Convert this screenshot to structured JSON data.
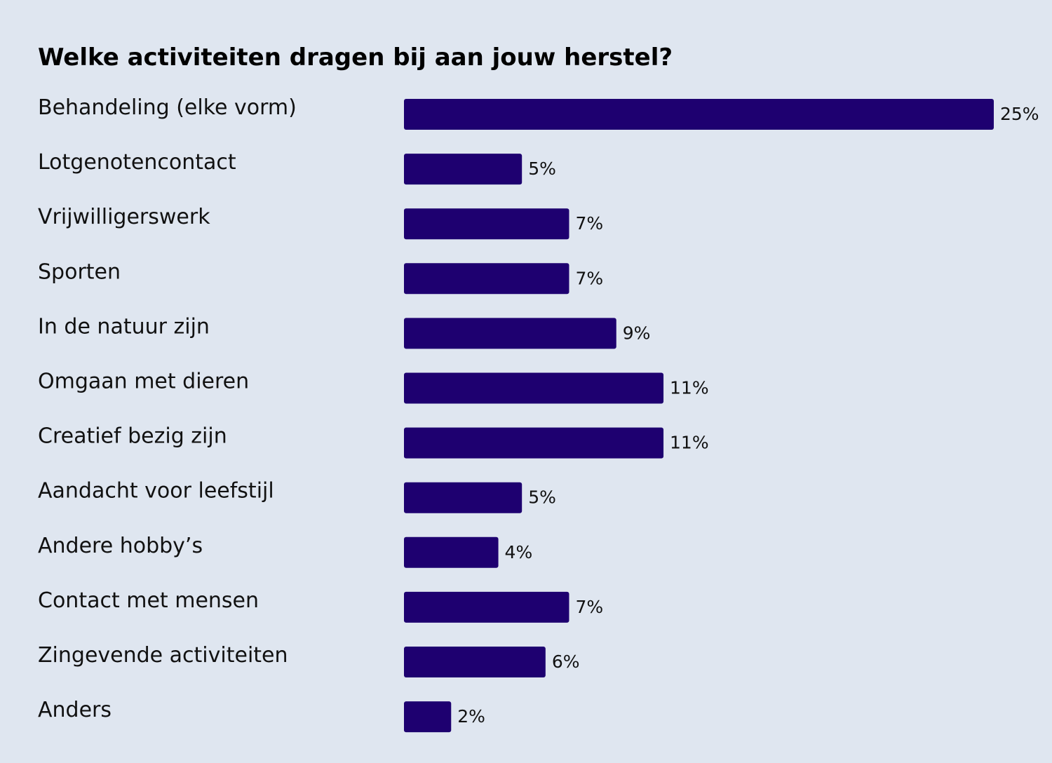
{
  "chart_data": {
    "type": "bar",
    "orientation": "horizontal",
    "title": "Welke activiteiten dragen bij aan jouw herstel?",
    "categories": [
      "Behandeling (elke vorm)",
      "Lotgenotencontact",
      "Vrijwilligerswerk",
      "Sporten",
      "In de natuur zijn",
      "Omgaan met dieren",
      "Creatief bezig zijn",
      "Aandacht voor leefstijl",
      "Andere hobby’s",
      "Contact met mensen",
      "Zingevende activiteiten",
      "Anders"
    ],
    "values": [
      25,
      5,
      7,
      7,
      9,
      11,
      11,
      5,
      4,
      7,
      6,
      2
    ],
    "value_labels": [
      "25%",
      "5%",
      "7%",
      "7%",
      "9%",
      "11%",
      "11%",
      "5%",
      "4%",
      "7%",
      "6%",
      "2%"
    ],
    "unit": "%",
    "xlim": [
      0,
      25
    ],
    "grid": false,
    "bar_color": "#1e0070",
    "background_color": "#dfe6f0"
  }
}
